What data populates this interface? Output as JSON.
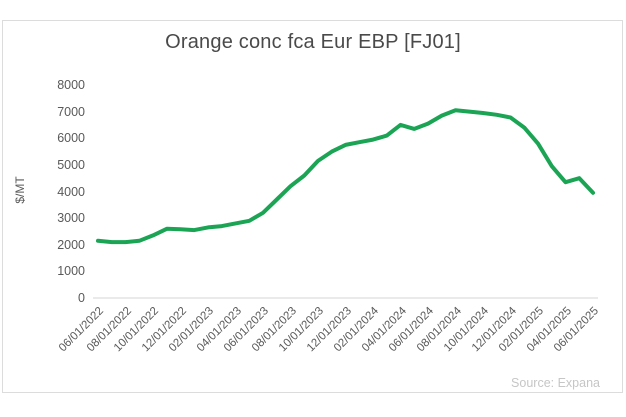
{
  "card": {
    "title": "Orange conc fca Eur EBP [FJ01]",
    "source": "Source: Expana"
  },
  "chart_data": {
    "type": "line",
    "title": "Orange conc fca Eur EBP [FJ01]",
    "xlabel": "",
    "ylabel": "$/MT",
    "ylim": [
      0,
      8000
    ],
    "y_ticks": [
      0,
      1000,
      2000,
      3000,
      4000,
      5000,
      6000,
      7000,
      8000
    ],
    "x_tick_labels": [
      "06/01/2022",
      "08/01/2022",
      "10/01/2022",
      "12/01/2022",
      "02/01/2023",
      "04/01/2023",
      "06/01/2023",
      "08/01/2023",
      "10/01/2023",
      "12/01/2023",
      "02/01/2024",
      "04/01/2024",
      "06/01/2024",
      "08/01/2024",
      "10/01/2024",
      "12/01/2024",
      "02/01/2025",
      "04/01/2025",
      "06/01/2025"
    ],
    "grid": "baseline-only",
    "legend": "none",
    "source": "Source: Expana",
    "series": [
      {
        "name": "Orange conc fca Eur EBP [FJ01]",
        "color": "#1aa454",
        "x": [
          "06/01/2022",
          "07/01/2022",
          "08/01/2022",
          "09/01/2022",
          "10/01/2022",
          "11/01/2022",
          "12/01/2022",
          "01/01/2023",
          "02/01/2023",
          "03/01/2023",
          "04/01/2023",
          "05/01/2023",
          "06/01/2023",
          "07/01/2023",
          "08/01/2023",
          "09/01/2023",
          "10/01/2023",
          "11/01/2023",
          "12/01/2023",
          "01/01/2024",
          "02/01/2024",
          "03/01/2024",
          "04/01/2024",
          "05/01/2024",
          "06/01/2024",
          "07/01/2024",
          "08/01/2024",
          "09/01/2024",
          "10/01/2024",
          "11/01/2024",
          "12/01/2024",
          "01/01/2025",
          "02/01/2025",
          "03/01/2025",
          "04/01/2025",
          "05/01/2025",
          "06/01/2025"
        ],
        "values": [
          2150,
          2100,
          2100,
          2150,
          2350,
          2600,
          2580,
          2550,
          2650,
          2700,
          2800,
          2900,
          3200,
          3700,
          4200,
          4600,
          5150,
          5500,
          5750,
          5850,
          5950,
          6100,
          6500,
          6350,
          6550,
          6850,
          7050,
          7000,
          6950,
          6880,
          6780,
          6400,
          5800,
          4950,
          4350,
          4500,
          3950
        ]
      }
    ],
    "colors": {
      "line": "#1aa454",
      "baseline_grid": "#e3e3e3",
      "card_border": "#dcdcdc",
      "title_text": "#4a4a4a",
      "tick_text": "#595959",
      "source_text": "#c6c6c6"
    }
  }
}
